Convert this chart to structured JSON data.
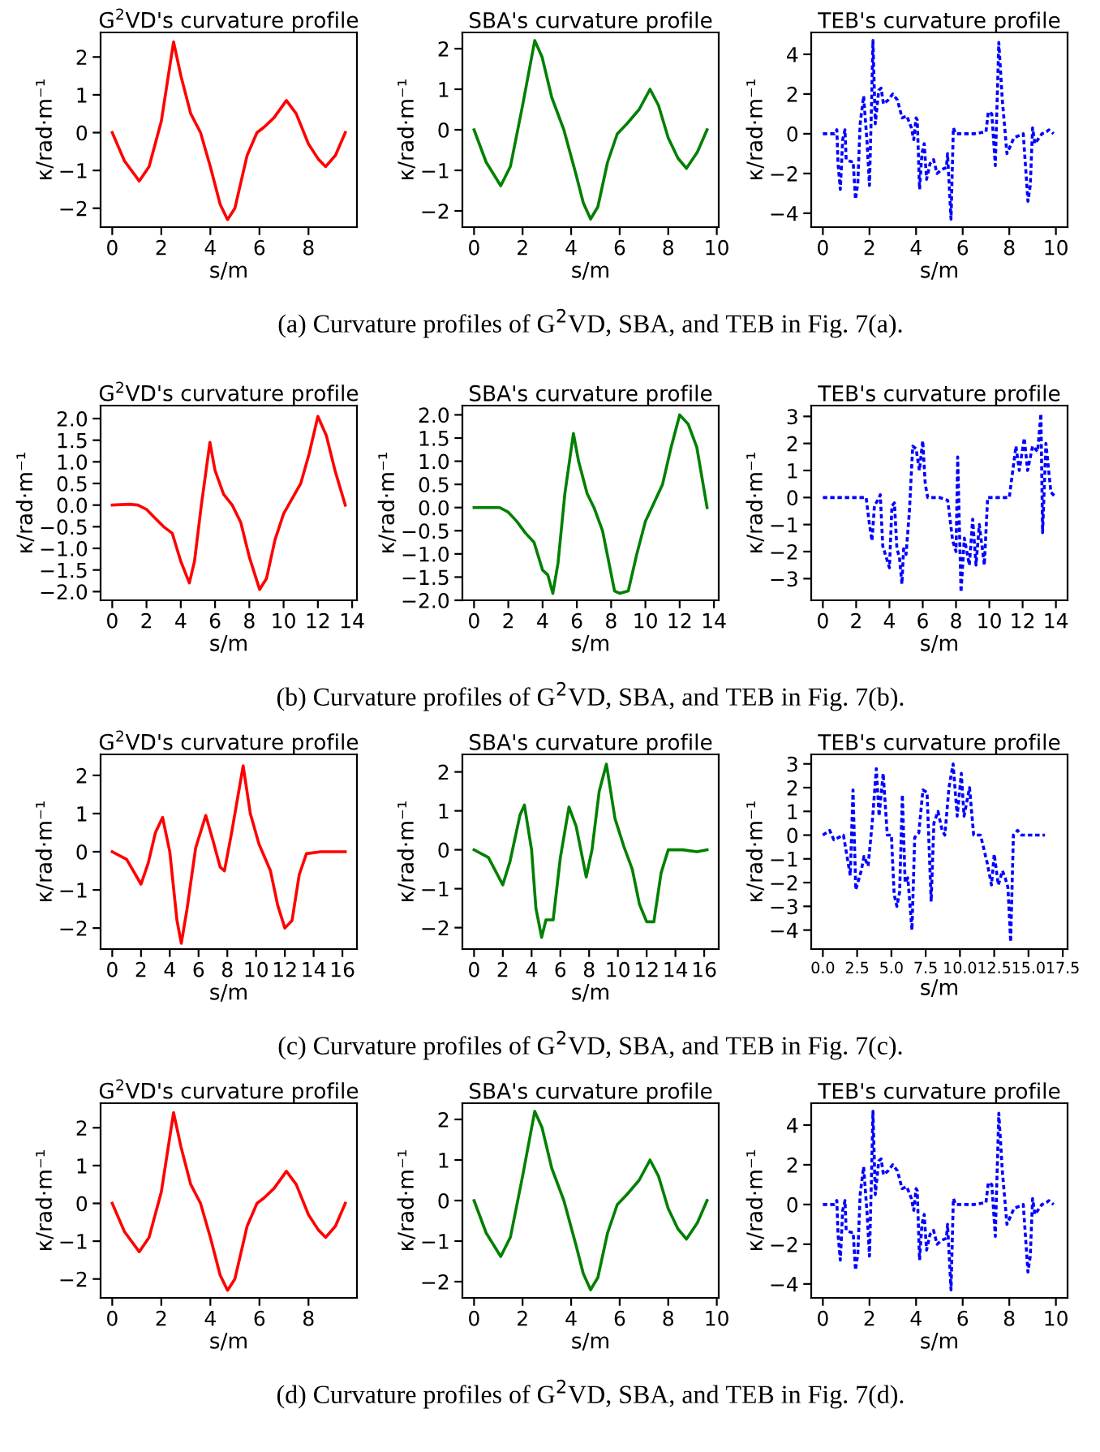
{
  "chart_data": [
    {
      "type": "line",
      "title": "G$^{2}$VD's curvature profile",
      "xlabel": "s/m",
      "ylabel": "κ/rad·m⁻¹",
      "xlim": [
        -0.475,
        9.975
      ],
      "ylim": [
        -2.5,
        2.65
      ],
      "xticks": [
        0,
        2,
        4,
        6,
        8
      ],
      "yticks": [
        {
          "value": -2,
          "label": "−2"
        },
        {
          "value": -1,
          "label": "−1"
        },
        0,
        1,
        2
      ],
      "x": [
        0,
        0.5,
        1.1,
        1.5,
        2.0,
        2.5,
        2.8,
        3.2,
        3.6,
        4.0,
        4.4,
        4.7,
        5.0,
        5.5,
        5.9,
        6.2,
        6.6,
        7.1,
        7.5,
        8.0,
        8.4,
        8.7,
        9.1,
        9.5
      ],
      "series": [
        {
          "color": "#ff0000",
          "values": [
            0,
            -0.75,
            -1.28,
            -0.9,
            0.3,
            2.4,
            1.5,
            0.5,
            0.0,
            -0.9,
            -1.9,
            -2.3,
            -2.0,
            -0.6,
            0,
            0.15,
            0.4,
            0.85,
            0.5,
            -0.3,
            -0.7,
            -0.9,
            -0.6,
            0
          ]
        }
      ]
    },
    {
      "type": "line",
      "title": "SBA's curvature profile",
      "xlabel": "s/m",
      "ylabel": "κ/rad·m⁻¹",
      "xlim": [
        -0.48,
        10.08
      ],
      "ylim": [
        -2.4,
        2.4
      ],
      "xticks": [
        0,
        2,
        4,
        6,
        8,
        10
      ],
      "yticks": [
        {
          "value": -2,
          "label": "−2"
        },
        {
          "value": -1,
          "label": "−1"
        },
        0,
        1,
        2
      ],
      "annotations": [
        "(a) Curvature profiles of G$^{2}$VD, SBA, and TEB in Fig. 7(a)."
      ],
      "x": [
        0,
        0.5,
        1.1,
        1.5,
        2.0,
        2.5,
        2.8,
        3.2,
        3.7,
        4.2,
        4.5,
        4.8,
        5.1,
        5.5,
        5.9,
        6.3,
        6.8,
        7.25,
        7.6,
        8.0,
        8.4,
        8.75,
        9.2,
        9.6
      ],
      "series": [
        {
          "color": "#008000",
          "values": [
            0,
            -0.8,
            -1.38,
            -0.9,
            0.6,
            2.2,
            1.8,
            0.8,
            0,
            -1.1,
            -1.8,
            -2.2,
            -1.9,
            -0.8,
            -0.1,
            0.15,
            0.5,
            1.0,
            0.6,
            -0.2,
            -0.7,
            -0.95,
            -0.55,
            0
          ]
        }
      ]
    },
    {
      "type": "line",
      "title": "TEB's curvature profile",
      "xlabel": "s/m",
      "ylabel": "κ/rad·m⁻¹",
      "line_style": "dotted",
      "xlim": [
        -0.5,
        10.5
      ],
      "ylim": [
        -4.7,
        5.1
      ],
      "xticks": [
        0,
        2,
        4,
        6,
        8,
        10
      ],
      "yticks": [
        {
          "value": -4,
          "label": "−4"
        },
        {
          "value": -2,
          "label": "−2"
        },
        0,
        2,
        4
      ],
      "x": [
        0,
        0.5,
        0.6,
        0.65,
        0.75,
        0.85,
        0.95,
        1.0,
        1.2,
        1.3,
        1.4,
        1.5,
        1.6,
        1.75,
        1.9,
        2.0,
        2.1,
        2.15,
        2.25,
        2.4,
        2.5,
        2.6,
        2.8,
        3.0,
        3.2,
        3.4,
        3.6,
        3.8,
        3.9,
        4.0,
        4.05,
        4.15,
        4.25,
        4.35,
        4.45,
        4.6,
        4.75,
        4.9,
        5.1,
        5.3,
        5.35,
        5.5,
        5.6,
        5.7,
        6.0,
        6.5,
        7.0,
        7.1,
        7.25,
        7.4,
        7.55,
        7.7,
        7.9,
        8.2,
        8.6,
        8.8,
        8.9,
        9.0,
        9.1,
        9.4,
        9.6,
        9.7,
        9.9
      ],
      "series": [
        {
          "color": "#0000ff",
          "values": [
            0,
            0,
            0.2,
            -1.5,
            -2.8,
            -0.3,
            0.2,
            -1.3,
            -1.4,
            -1.4,
            -3.3,
            -2.5,
            0.5,
            1.9,
            -0.5,
            -2.6,
            2.0,
            4.7,
            0.5,
            2.2,
            2.3,
            1.5,
            1.7,
            2.0,
            1.7,
            0.8,
            0.9,
            0.3,
            -0.3,
            0.8,
            0.7,
            -2.8,
            -1.0,
            -0.5,
            -2.3,
            -1.5,
            -1.3,
            -2.0,
            -1.8,
            -1.7,
            -1.0,
            -4.3,
            0.3,
            0,
            0,
            0,
            0.1,
            1.1,
            1.0,
            -1.6,
            4.6,
            1.7,
            -1.0,
            -0.2,
            0,
            -3.4,
            -2.6,
            0.3,
            -0.5,
            0.0,
            0.1,
            0.2,
            0.0
          ]
        }
      ]
    },
    {
      "type": "line",
      "title": "G$^{2}$VD's curvature profile",
      "xlabel": "s/m",
      "ylabel": "κ/rad·m⁻¹",
      "xlim": [
        -0.68,
        14.28
      ],
      "ylim": [
        -2.2,
        2.3
      ],
      "xticks": [
        0,
        2,
        4,
        6,
        8,
        10,
        12,
        14
      ],
      "yticks": [
        {
          "value": -2,
          "label": "−2.0"
        },
        {
          "value": -1.5,
          "label": "−1.5"
        },
        {
          "value": -1,
          "label": "−1.0"
        },
        {
          "value": -0.5,
          "label": "−0.5"
        },
        {
          "value": 0,
          "label": "0.0"
        },
        0.5,
        {
          "value": 1,
          "label": "1.0"
        },
        1.5,
        {
          "value": 2,
          "label": "2.0"
        }
      ],
      "x": [
        0,
        1,
        1.5,
        2,
        2.5,
        3,
        3.5,
        4,
        4.5,
        4.8,
        5.2,
        5.7,
        6.0,
        6.5,
        7,
        7.5,
        8,
        8.6,
        9,
        9.5,
        10,
        10.5,
        11,
        11.5,
        12,
        12.5,
        13,
        13.6
      ],
      "series": [
        {
          "color": "#ff0000",
          "values": [
            0,
            0.02,
            0,
            -0.1,
            -0.3,
            -0.5,
            -0.65,
            -1.3,
            -1.8,
            -1.3,
            0,
            1.45,
            0.8,
            0.25,
            0,
            -0.4,
            -1.2,
            -1.95,
            -1.7,
            -0.8,
            -0.2,
            0.15,
            0.5,
            1.2,
            2.05,
            1.6,
            0.8,
            0
          ]
        }
      ]
    },
    {
      "type": "line",
      "title": "SBA's curvature profile",
      "xlabel": "s/m",
      "ylabel": "κ/rad·m⁻¹",
      "xlim": [
        -0.68,
        14.28
      ],
      "ylim": [
        -2.0,
        2.2
      ],
      "xticks": [
        0,
        2,
        4,
        6,
        8,
        10,
        12,
        14
      ],
      "yticks": [
        {
          "value": -2,
          "label": "−2.0"
        },
        {
          "value": -1.5,
          "label": "−1.5"
        },
        {
          "value": -1,
          "label": "−1.0"
        },
        {
          "value": -0.5,
          "label": "−0.5"
        },
        {
          "value": 0,
          "label": "0.0"
        },
        0.5,
        {
          "value": 1,
          "label": "1.0"
        },
        1.5,
        {
          "value": 2,
          "label": "2.0"
        }
      ],
      "annotations": [
        "(b) Curvature profiles of G$^{2}$VD, SBA, and TEB in Fig. 7(b)."
      ],
      "x": [
        0,
        1.5,
        2,
        2.5,
        3,
        3.5,
        4,
        4.3,
        4.6,
        4.9,
        5.3,
        5.8,
        6.1,
        6.6,
        7,
        7.5,
        8.2,
        8.5,
        9,
        9.5,
        10,
        10.5,
        11,
        11.5,
        12,
        12.5,
        13,
        13.6
      ],
      "series": [
        {
          "color": "#008000",
          "values": [
            0,
            0,
            -0.1,
            -0.3,
            -0.55,
            -0.75,
            -1.35,
            -1.45,
            -1.85,
            -1.2,
            0.3,
            1.6,
            1.0,
            0.3,
            0,
            -0.5,
            -1.8,
            -1.85,
            -1.8,
            -1.0,
            -0.3,
            0.1,
            0.5,
            1.3,
            2.0,
            1.8,
            1.3,
            0
          ]
        }
      ]
    },
    {
      "type": "line",
      "title": "TEB's curvature profile",
      "xlabel": "s/m",
      "ylabel": "κ/rad·m⁻¹",
      "line_style": "dotted",
      "xlim": [
        -0.7,
        14.7
      ],
      "ylim": [
        -3.8,
        3.4
      ],
      "xticks": [
        0,
        2,
        4,
        6,
        8,
        10,
        12,
        14
      ],
      "yticks": [
        {
          "value": -3,
          "label": "−3"
        },
        {
          "value": -2,
          "label": "−2"
        },
        {
          "value": -1,
          "label": "−1"
        },
        0,
        1,
        2,
        3
      ],
      "x": [
        0,
        1,
        2,
        2.6,
        2.8,
        2.95,
        3.1,
        3.3,
        3.45,
        3.6,
        3.8,
        4.0,
        4.15,
        4.3,
        4.45,
        4.6,
        4.75,
        4.85,
        5.0,
        5.2,
        5.4,
        5.6,
        5.8,
        6.0,
        6.15,
        6.3,
        7.0,
        7.5,
        7.8,
        8.0,
        8.1,
        8.3,
        8.5,
        8.8,
        9.0,
        9.2,
        9.4,
        9.7,
        9.9,
        10.5,
        11.2,
        11.6,
        11.8,
        12.1,
        12.3,
        12.6,
        12.9,
        13.1,
        13.2,
        13.4,
        13.7,
        14.0
      ],
      "series": [
        {
          "color": "#0000ff",
          "values": [
            0,
            0,
            0,
            0,
            -1.0,
            -1.6,
            -0.3,
            -0.1,
            0.1,
            -1.8,
            -2.2,
            -2.6,
            -0.3,
            -0.2,
            -1.9,
            -2.2,
            -3.2,
            -1.9,
            -2.1,
            -0.5,
            1.9,
            1.8,
            1.0,
            2.1,
            0.5,
            0,
            0,
            -0.1,
            -1.6,
            -2.0,
            1.5,
            -3.5,
            -1.5,
            -2.5,
            -0.8,
            -2.5,
            -1.0,
            -2.5,
            0,
            0,
            0,
            1.9,
            1.0,
            2.2,
            1.0,
            1.9,
            1.7,
            3.1,
            -1.3,
            2.0,
            0.2,
            0
          ]
        }
      ]
    },
    {
      "type": "line",
      "title": "G$^{2}$VD's curvature profile",
      "xlabel": "s/m",
      "ylabel": "κ/rad·m⁻¹",
      "xlim": [
        -0.81,
        17.01
      ],
      "ylim": [
        -2.55,
        2.55
      ],
      "xticks": [
        0,
        2,
        4,
        6,
        8,
        10,
        12,
        14,
        16
      ],
      "yticks": [
        {
          "value": -2,
          "label": "−2"
        },
        {
          "value": -1,
          "label": "−1"
        },
        0,
        1,
        2
      ],
      "x": [
        0,
        1,
        2,
        2.5,
        3,
        3.5,
        4,
        4.5,
        4.8,
        5.2,
        5.8,
        6.5,
        7,
        7.5,
        7.8,
        8.3,
        9.1,
        9.6,
        10.2,
        11,
        11.5,
        12,
        12.5,
        13,
        13.5,
        14.5,
        16.2
      ],
      "series": [
        {
          "color": "#ff0000",
          "values": [
            0,
            -0.2,
            -0.85,
            -0.3,
            0.5,
            0.9,
            0,
            -1.8,
            -2.4,
            -1.5,
            0.1,
            0.95,
            0.3,
            -0.4,
            -0.5,
            0.5,
            2.25,
            1.0,
            0.2,
            -0.5,
            -1.4,
            -2.0,
            -1.8,
            -0.6,
            -0.05,
            0,
            0
          ]
        }
      ]
    },
    {
      "type": "line",
      "title": "SBA's curvature profile",
      "xlabel": "s/m",
      "ylabel": "κ/rad·m⁻¹",
      "xlim": [
        -0.81,
        17.01
      ],
      "ylim": [
        -2.55,
        2.45
      ],
      "xticks": [
        0,
        2,
        4,
        6,
        8,
        10,
        12,
        14,
        16
      ],
      "yticks": [
        {
          "value": -2,
          "label": "−2"
        },
        {
          "value": -1,
          "label": "−1"
        },
        0,
        1,
        2
      ],
      "annotations": [
        "(c) Curvature profiles of G$^{2}$VD, SBA, and TEB in Fig. 7(c)."
      ],
      "x": [
        0,
        1,
        2,
        2.5,
        3.2,
        3.5,
        4,
        4.3,
        4.7,
        5,
        5.5,
        6,
        6.6,
        7.1,
        7.8,
        8.2,
        8.7,
        9.2,
        9.8,
        10.4,
        11,
        11.5,
        12,
        12.5,
        13,
        13.5,
        14.5,
        15.5,
        16.2
      ],
      "series": [
        {
          "color": "#008000",
          "values": [
            0,
            -0.2,
            -0.9,
            -0.3,
            0.9,
            1.15,
            0,
            -1.5,
            -2.25,
            -1.8,
            -1.8,
            -0.2,
            1.1,
            0.6,
            -0.7,
            0,
            1.5,
            2.2,
            0.8,
            0.1,
            -0.5,
            -1.4,
            -1.85,
            -1.85,
            -0.6,
            0,
            0,
            -0.05,
            0
          ]
        }
      ]
    },
    {
      "type": "line",
      "title": "TEB's curvature profile",
      "xlabel": "s/m",
      "ylabel": "κ/rad·m⁻¹",
      "line_style": "dotted",
      "xlim": [
        -0.85,
        17.85
      ],
      "ylim": [
        -4.8,
        3.4
      ],
      "xticks": [
        {
          "value": 0,
          "label": "0.0"
        },
        2.5,
        {
          "value": 5,
          "label": "5.0"
        },
        7.5,
        {
          "value": 10,
          "label": "10.0"
        },
        12.5,
        {
          "value": 15,
          "label": "15.0"
        },
        17.5
      ],
      "yticks": [
        {
          "value": -4,
          "label": "−4"
        },
        {
          "value": -3,
          "label": "−3"
        },
        {
          "value": -2,
          "label": "−2"
        },
        {
          "value": -1,
          "label": "−1"
        },
        0,
        1,
        2,
        3
      ],
      "x": [
        0,
        0.5,
        0.8,
        1.5,
        2.0,
        2.2,
        2.4,
        2.8,
        3.0,
        3.3,
        3.6,
        3.9,
        4.1,
        4.4,
        4.7,
        5,
        5.2,
        5.4,
        5.6,
        5.8,
        6.0,
        6.2,
        6.5,
        6.7,
        7.0,
        7.3,
        7.6,
        7.9,
        8.1,
        8.4,
        8.7,
        8.9,
        9.2,
        9.5,
        9.8,
        10.1,
        10.3,
        10.7,
        11.0,
        11.5,
        12.0,
        12.3,
        12.5,
        12.8,
        13.1,
        13.3,
        13.5,
        13.7,
        13.9,
        14.2,
        14.5,
        15.0,
        15.6,
        16.2
      ],
      "series": [
        {
          "color": "#0000ff",
          "values": [
            0,
            0.2,
            -0.2,
            0,
            -1.7,
            1.9,
            -2.3,
            -1.5,
            -0.9,
            -1.3,
            0.5,
            2.8,
            0.8,
            2.6,
            0,
            0,
            -2.5,
            -3.0,
            -2.4,
            1.7,
            -2.0,
            -1.8,
            -4.0,
            -0.1,
            0.1,
            1.9,
            1.8,
            -2.8,
            0.5,
            1.0,
            0.2,
            0,
            2.0,
            3.0,
            0.8,
            2.6,
            0.8,
            2.0,
            0,
            0,
            -1.2,
            -2.1,
            -0.8,
            -2.1,
            -1.5,
            -1.8,
            -2.2,
            -4.5,
            0,
            0.2,
            0,
            0,
            0,
            0
          ]
        }
      ]
    },
    {
      "type": "line",
      "title": "G$^{2}$VD's curvature profile",
      "xlabel": "s/m",
      "ylabel": "κ/rad·m⁻¹",
      "xlim": [
        -0.475,
        9.975
      ],
      "ylim": [
        -2.5,
        2.65
      ],
      "xticks": [
        0,
        2,
        4,
        6,
        8
      ],
      "yticks": [
        {
          "value": -2,
          "label": "−2"
        },
        {
          "value": -1,
          "label": "−1"
        },
        0,
        1,
        2
      ],
      "x": [
        0,
        0.5,
        1.1,
        1.5,
        2.0,
        2.5,
        2.8,
        3.2,
        3.6,
        4.0,
        4.4,
        4.7,
        5.0,
        5.5,
        5.9,
        6.2,
        6.6,
        7.1,
        7.5,
        8.0,
        8.4,
        8.7,
        9.1,
        9.5
      ],
      "series": [
        {
          "color": "#ff0000",
          "values": [
            0,
            -0.75,
            -1.28,
            -0.9,
            0.3,
            2.4,
            1.5,
            0.5,
            0.0,
            -0.9,
            -1.9,
            -2.3,
            -2.0,
            -0.6,
            0,
            0.15,
            0.4,
            0.85,
            0.5,
            -0.3,
            -0.7,
            -0.9,
            -0.6,
            0
          ]
        }
      ]
    },
    {
      "type": "line",
      "title": "SBA's curvature profile",
      "xlabel": "s/m",
      "ylabel": "κ/rad·m⁻¹",
      "xlim": [
        -0.48,
        10.08
      ],
      "ylim": [
        -2.4,
        2.4
      ],
      "xticks": [
        0,
        2,
        4,
        6,
        8,
        10
      ],
      "yticks": [
        {
          "value": -2,
          "label": "−2"
        },
        {
          "value": -1,
          "label": "−1"
        },
        0,
        1,
        2
      ],
      "annotations": [
        "(d) Curvature profiles of G$^{2}$VD, SBA, and TEB in Fig. 7(d)."
      ],
      "x": [
        0,
        0.5,
        1.1,
        1.5,
        2.0,
        2.5,
        2.8,
        3.2,
        3.7,
        4.2,
        4.5,
        4.8,
        5.1,
        5.5,
        5.9,
        6.3,
        6.8,
        7.25,
        7.6,
        8.0,
        8.4,
        8.75,
        9.2,
        9.6
      ],
      "series": [
        {
          "color": "#008000",
          "values": [
            0,
            -0.8,
            -1.38,
            -0.9,
            0.6,
            2.2,
            1.8,
            0.8,
            0,
            -1.1,
            -1.8,
            -2.2,
            -1.9,
            -0.8,
            -0.1,
            0.15,
            0.5,
            1.0,
            0.6,
            -0.2,
            -0.7,
            -0.95,
            -0.55,
            0
          ]
        }
      ]
    },
    {
      "type": "line",
      "title": "TEB's curvature profile",
      "xlabel": "s/m",
      "ylabel": "κ/rad·m⁻¹",
      "line_style": "dotted",
      "xlim": [
        -0.5,
        10.5
      ],
      "ylim": [
        -4.7,
        5.1
      ],
      "xticks": [
        0,
        2,
        4,
        6,
        8,
        10
      ],
      "yticks": [
        {
          "value": -4,
          "label": "−4"
        },
        {
          "value": -2,
          "label": "−2"
        },
        0,
        2,
        4
      ],
      "x": [
        0,
        0.5,
        0.6,
        0.65,
        0.75,
        0.85,
        0.95,
        1.0,
        1.2,
        1.3,
        1.4,
        1.5,
        1.6,
        1.75,
        1.9,
        2.0,
        2.1,
        2.15,
        2.25,
        2.4,
        2.5,
        2.6,
        2.8,
        3.0,
        3.2,
        3.4,
        3.6,
        3.8,
        3.9,
        4.0,
        4.05,
        4.15,
        4.25,
        4.35,
        4.45,
        4.6,
        4.75,
        4.9,
        5.1,
        5.3,
        5.35,
        5.5,
        5.6,
        5.7,
        6.0,
        6.5,
        7.0,
        7.1,
        7.25,
        7.4,
        7.55,
        7.7,
        7.9,
        8.2,
        8.6,
        8.8,
        8.9,
        9.0,
        9.1,
        9.4,
        9.6,
        9.7,
        9.9
      ],
      "series": [
        {
          "color": "#0000ff",
          "values": [
            0,
            0,
            0.2,
            -1.5,
            -2.8,
            -0.3,
            0.2,
            -1.3,
            -1.4,
            -1.4,
            -3.3,
            -2.5,
            0.5,
            1.9,
            -0.5,
            -2.6,
            2.0,
            4.7,
            0.5,
            2.2,
            2.3,
            1.5,
            1.7,
            2.0,
            1.7,
            0.8,
            0.9,
            0.3,
            -0.3,
            0.8,
            0.7,
            -2.8,
            -1.0,
            -0.5,
            -2.3,
            -1.5,
            -1.3,
            -2.0,
            -1.8,
            -1.7,
            -1.0,
            -4.3,
            0.3,
            0,
            0,
            0,
            0.1,
            1.1,
            1.0,
            -1.6,
            4.6,
            1.7,
            -1.0,
            -0.2,
            0,
            -3.4,
            -2.6,
            0.3,
            -0.5,
            0.0,
            0.1,
            0.2,
            0.0
          ]
        }
      ]
    }
  ]
}
